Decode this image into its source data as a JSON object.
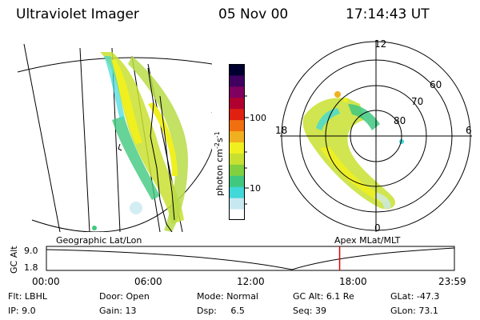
{
  "header": {
    "title": "Ultraviolet Imager",
    "date": "05 Nov 00",
    "time": "17:14:43 UT"
  },
  "geo_panel": {
    "label": "Geographic Lat/Lon"
  },
  "polar_panel": {
    "label": "Apex MLat/MLT",
    "mlt_labels": [
      "12",
      "18",
      "6",
      "0"
    ],
    "lat_labels": [
      "60",
      "70",
      "80"
    ]
  },
  "colorbar": {
    "unit_label": "photon cm",
    "unit_exp1": "-2",
    "unit_mid": "s",
    "unit_exp2": "-1",
    "ticks": [
      "100",
      "10"
    ],
    "colors": [
      "#ffffff",
      "#c8e8f0",
      "#40d8d8",
      "#40c880",
      "#80d040",
      "#c8e030",
      "#f0f020",
      "#f0b020",
      "#f07010",
      "#e02010",
      "#b00030",
      "#800060",
      "#400060",
      "#000030"
    ]
  },
  "timeline": {
    "axis_label": "GC Alt",
    "y_ticks": [
      "9.0",
      "1.8"
    ],
    "x_ticks": [
      "00:00",
      "06:00",
      "12:00",
      "18:00",
      "23:59"
    ],
    "current_marker_hour": 17.25,
    "marker_color": "#e00000"
  },
  "info": {
    "filter_label": "Flt:",
    "filter_value": "LBHL",
    "ip_label": "IP:",
    "ip_value": "9.0",
    "door_label": "Door:",
    "door_value": "Open",
    "gain_label": "Gain:",
    "gain_value": "13",
    "mode_label": "Mode:",
    "mode_value": "Normal",
    "dsp_label": "Dsp:",
    "dsp_value": "6.5",
    "gcalt_label": "GC Alt:",
    "gcalt_value": "6.1 Re",
    "seq_label": "Seq:",
    "seq_value": "39",
    "glat_label": "GLat:",
    "glat_value": "-47.3",
    "glon_label": "GLon:",
    "glon_value": "73.1"
  }
}
